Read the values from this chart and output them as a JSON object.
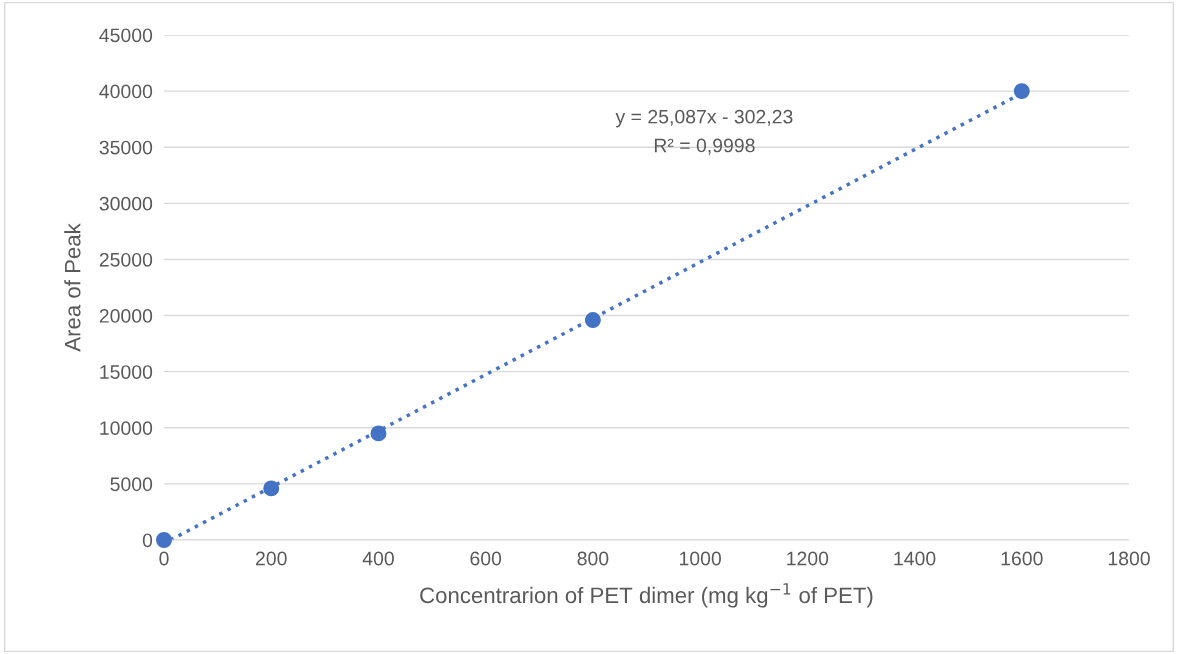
{
  "chart_data": {
    "type": "scatter",
    "xlabel": "Concentrarion of PET dimer (mg kg$^{−1}$ of PET)",
    "ylabel": "Area of Peak",
    "series": [
      {
        "color": "#4472c4",
        "x": [
          0,
          200,
          400,
          800,
          1600
        ],
        "values": [
          0,
          4600,
          9500,
          19600,
          40000
        ],
        "marker": "circle"
      },
      {
        "type": "line",
        "color": "#4472c4",
        "x": [
          12,
          1600
        ],
        "values": [
          0,
          39800
        ],
        "line_style": "dotted",
        "marker": "none"
      }
    ],
    "annotations": [
      "y = 25,087x - 302,23",
      "R² = 0,9998"
    ],
    "xlim": [
      0,
      1800
    ],
    "xticks": [
      0,
      200,
      400,
      600,
      800,
      1000,
      1200,
      1400,
      1600,
      1800
    ],
    "ylim": [
      0,
      45000
    ],
    "yticks": [
      0,
      5000,
      10000,
      15000,
      20000,
      25000,
      30000,
      35000,
      40000,
      45000
    ],
    "grid": "y",
    "legend": false
  }
}
